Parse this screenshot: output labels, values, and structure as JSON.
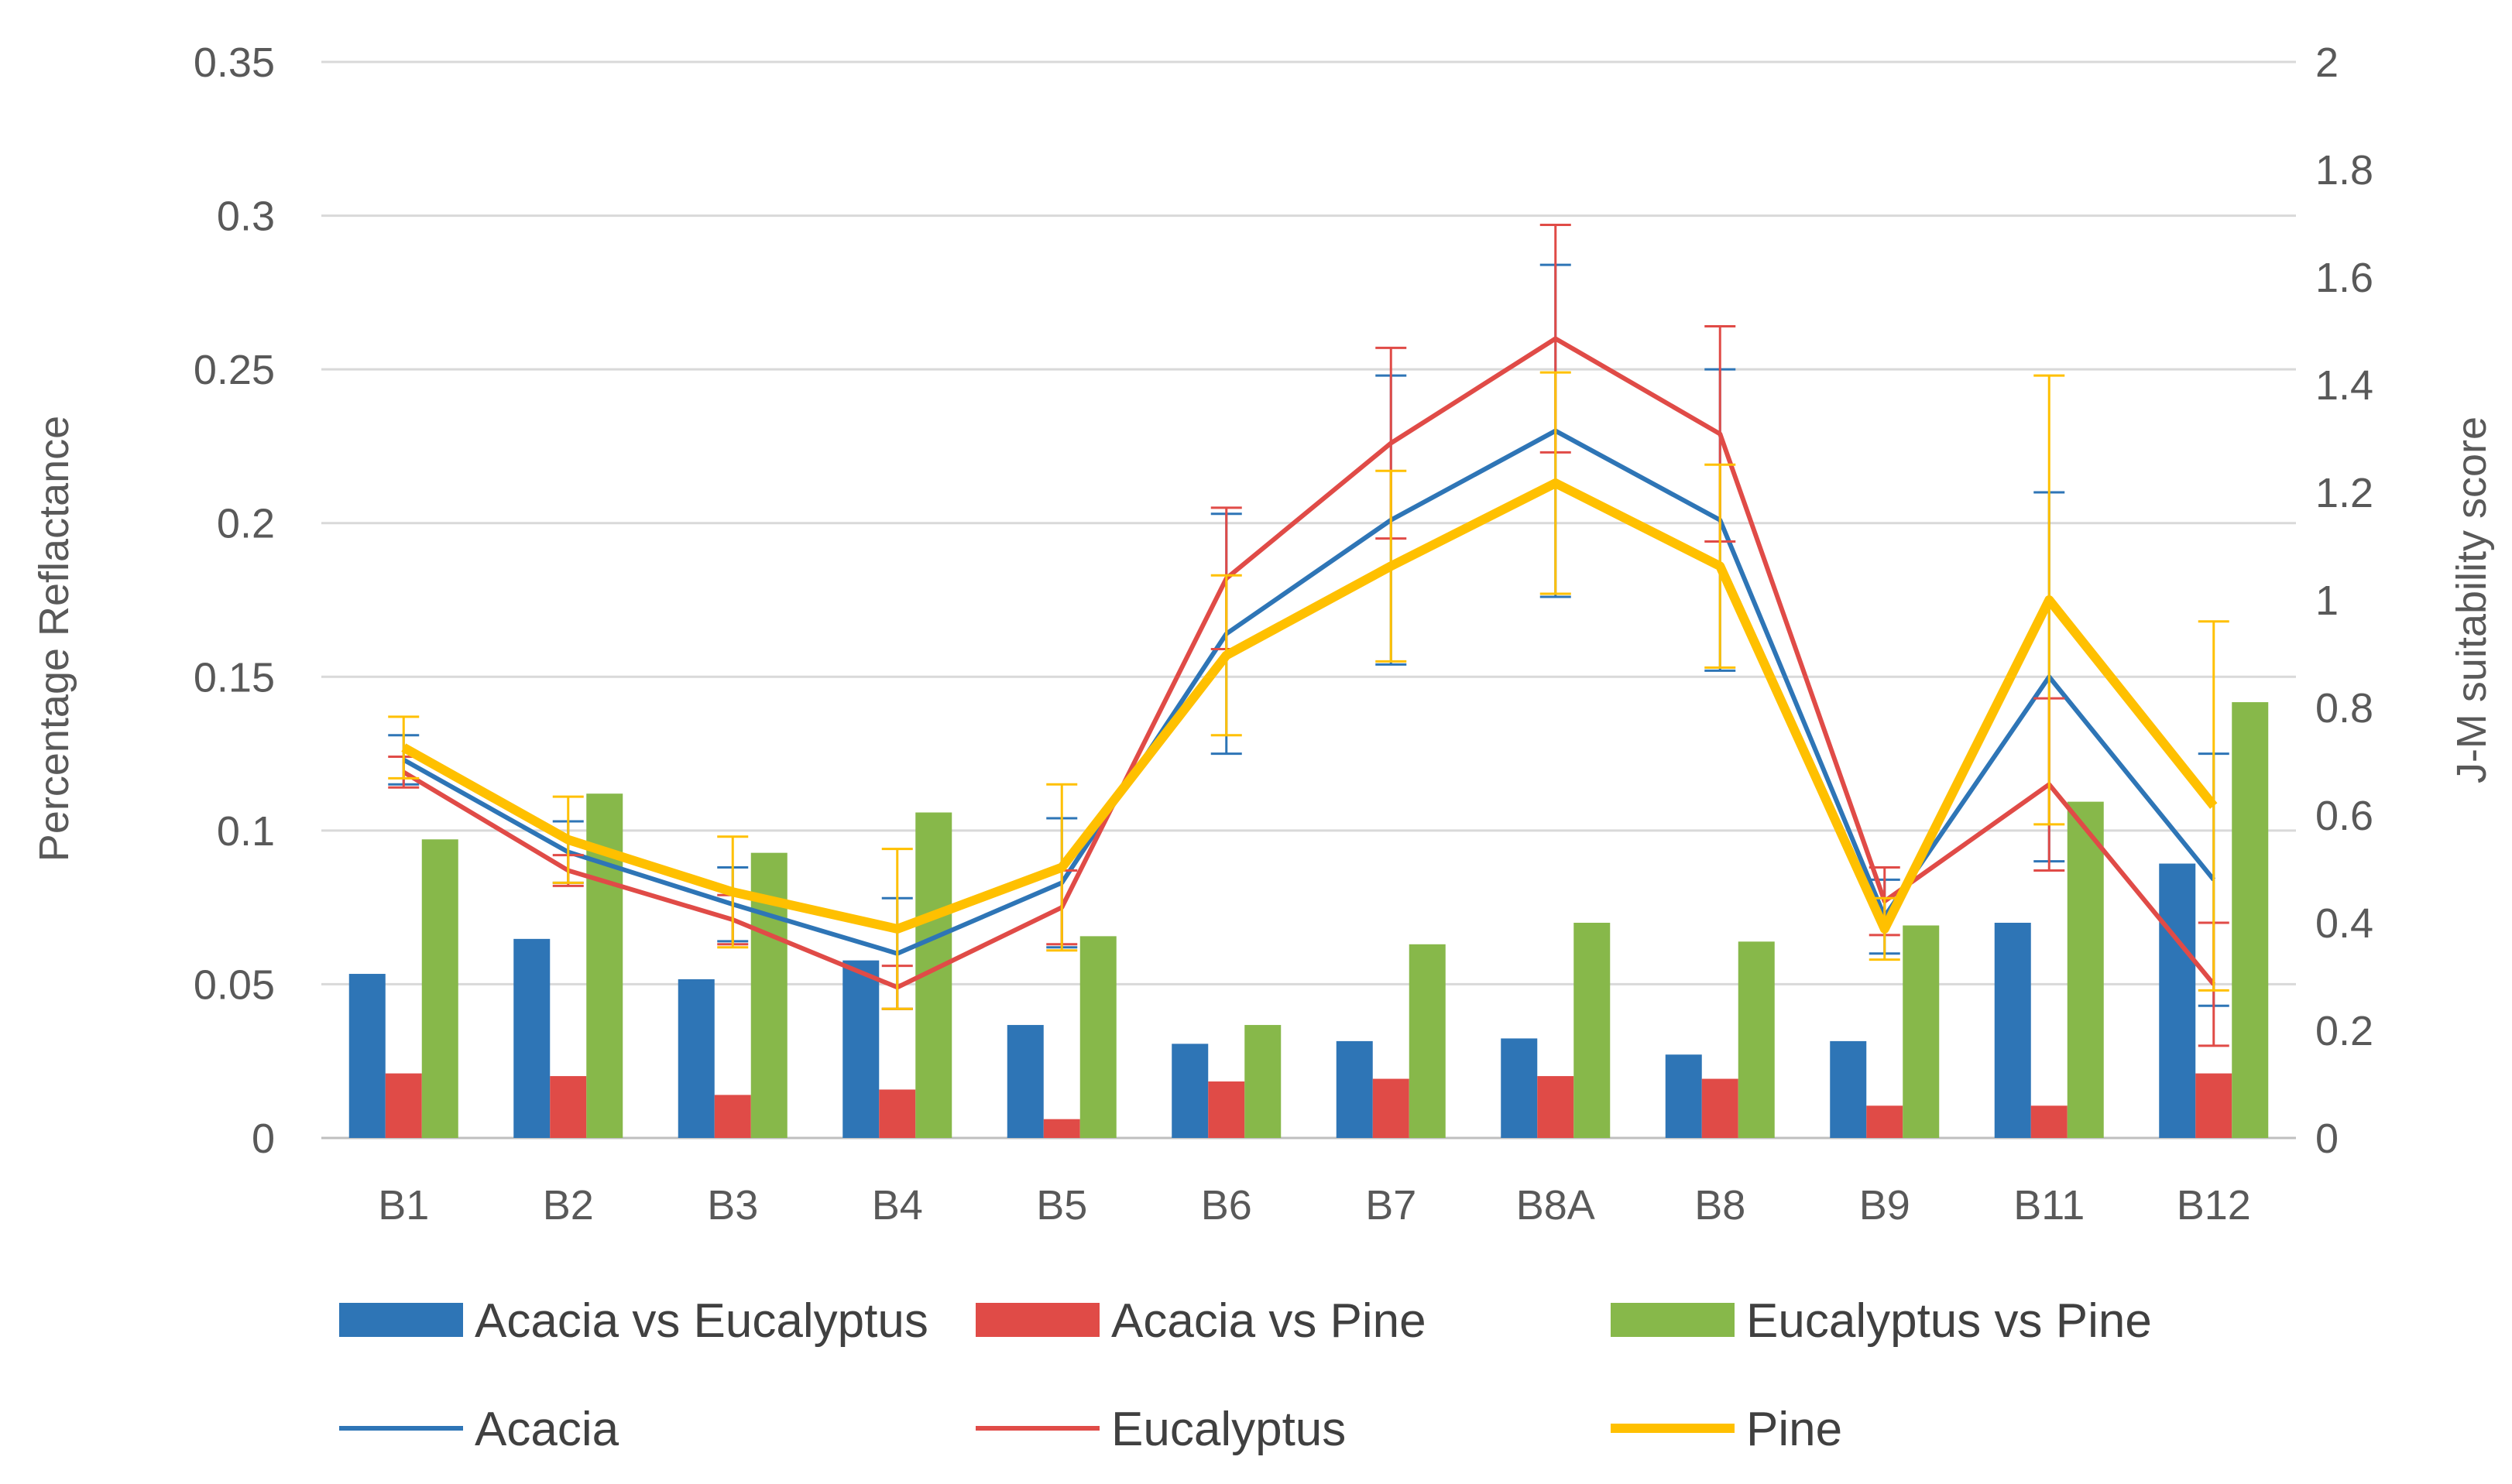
{
  "chart_data": {
    "type": "bar+line",
    "categories": [
      "B1",
      "B2",
      "B3",
      "B4",
      "B5",
      "B6",
      "B7",
      "B8A",
      "B8",
      "B9",
      "B11",
      "B12"
    ],
    "ylabel": "Percentage Reflactance",
    "y2label": "J-M suitability score",
    "ylim": [
      0,
      0.35
    ],
    "y2lim": [
      0,
      2
    ],
    "yticks": [
      "0",
      "0.05",
      "0.1",
      "0.15",
      "0.2",
      "0.25",
      "0.3",
      "0.35"
    ],
    "y2ticks": [
      "0",
      "0.2",
      "0.4",
      "0.6",
      "0.8",
      "1",
      "1.2",
      "1.4",
      "1.6",
      "1.8",
      "2"
    ],
    "grid": true,
    "legend_position": "bottom",
    "bar_series": [
      {
        "name": "Acacia vs Eucalyptus",
        "color": "#2e75b6",
        "values": [
          0.305,
          0.37,
          0.295,
          0.33,
          0.21,
          0.175,
          0.18,
          0.185,
          0.155,
          0.18,
          0.4,
          0.51
        ]
      },
      {
        "name": "Acacia vs Pine",
        "color": "#e04b47",
        "values": [
          0.12,
          0.115,
          0.08,
          0.09,
          0.035,
          0.105,
          0.11,
          0.115,
          0.11,
          0.06,
          0.06,
          0.12
        ]
      },
      {
        "name": "Eucalyptus vs Pine",
        "color": "#87b84a",
        "values": [
          0.555,
          0.64,
          0.53,
          0.605,
          0.375,
          0.21,
          0.36,
          0.4,
          0.365,
          0.395,
          0.625,
          0.81
        ]
      }
    ],
    "line_series": [
      {
        "name": "Acacia",
        "color": "#2e75b6",
        "width": 6,
        "values": [
          0.123,
          0.093,
          0.076,
          0.06,
          0.083,
          0.164,
          0.201,
          0.23,
          0.201,
          0.072,
          0.15,
          0.084
        ],
        "errors": [
          0.008,
          0.01,
          0.012,
          0.018,
          0.021,
          0.039,
          0.047,
          0.054,
          0.049,
          0.012,
          0.06,
          0.041
        ]
      },
      {
        "name": "Eucalyptus",
        "color": "#e04b47",
        "width": 6,
        "values": [
          0.119,
          0.087,
          0.071,
          0.049,
          0.075,
          0.182,
          0.226,
          0.26,
          0.229,
          0.077,
          0.115,
          0.05
        ],
        "errors": [
          0.005,
          0.005,
          0.008,
          0.007,
          0.012,
          0.023,
          0.031,
          0.037,
          0.035,
          0.011,
          0.028,
          0.02
        ]
      },
      {
        "name": "Pine",
        "color": "#ffc000",
        "width": 12,
        "values": [
          0.127,
          0.097,
          0.08,
          0.068,
          0.088,
          0.157,
          0.186,
          0.213,
          0.186,
          0.068,
          0.175,
          0.108
        ],
        "errors": [
          0.01,
          0.014,
          0.018,
          0.026,
          0.027,
          0.026,
          0.031,
          0.036,
          0.033,
          0.01,
          0.073,
          0.06
        ]
      }
    ]
  }
}
